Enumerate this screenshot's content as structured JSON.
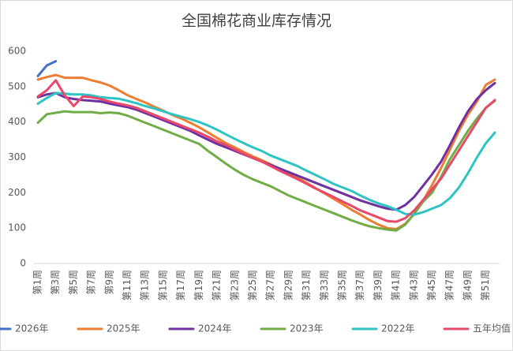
{
  "chart_data": {
    "type": "line",
    "title": "全国棉花商业库存情况",
    "categories": [
      "第1周",
      null,
      "第3周",
      null,
      "第5周",
      null,
      "第7周",
      null,
      "第9周",
      null,
      "第11周",
      null,
      "第13周",
      null,
      "第15周",
      null,
      "第17周",
      null,
      "第19周",
      null,
      "第21周",
      null,
      "第23周",
      null,
      "第25周",
      null,
      "第27周",
      null,
      "第29周",
      null,
      "第31周",
      null,
      "第33周",
      null,
      "第35周",
      null,
      "第37周",
      null,
      "第39周",
      null,
      "第41周",
      null,
      "第43周",
      null,
      "第45周",
      null,
      "第47周",
      null,
      "第49周",
      null,
      "第51周",
      null
    ],
    "ylim": [
      0,
      600
    ],
    "yticks": [
      0,
      100,
      200,
      300,
      400,
      500,
      600
    ],
    "grid": false,
    "legend": "bottom",
    "series": [
      {
        "name": "2026年",
        "color": "#4472c4",
        "values": [
          530,
          560,
          572,
          null,
          null,
          null,
          null,
          null,
          null,
          null,
          null,
          null,
          null,
          null,
          null,
          null,
          null,
          null,
          null,
          null,
          null,
          null,
          null,
          null,
          null,
          null,
          null,
          null,
          null,
          null,
          null,
          null,
          null,
          null,
          null,
          null,
          null,
          null,
          null,
          null,
          null,
          null,
          null,
          null,
          null,
          null,
          null,
          null,
          null,
          null,
          null,
          null
        ]
      },
      {
        "name": "2025年",
        "color": "#ed7d31",
        "values": [
          520,
          527,
          533,
          525,
          525,
          525,
          518,
          512,
          503,
          490,
          476,
          465,
          455,
          443,
          432,
          420,
          410,
          398,
          385,
          370,
          355,
          340,
          328,
          315,
          303,
          292,
          280,
          268,
          255,
          242,
          228,
          213,
          198,
          183,
          168,
          152,
          138,
          123,
          110,
          100,
          97,
          112,
          140,
          178,
          222,
          270,
          322,
          375,
          420,
          458,
          505,
          520
        ]
      },
      {
        "name": "2024年",
        "color": "#7030a0",
        "values": [
          470,
          478,
          482,
          470,
          465,
          462,
          460,
          458,
          452,
          447,
          442,
          435,
          425,
          415,
          405,
          395,
          385,
          375,
          362,
          350,
          338,
          328,
          318,
          308,
          298,
          288,
          278,
          268,
          258,
          248,
          238,
          228,
          218,
          208,
          198,
          188,
          178,
          170,
          162,
          155,
          152,
          165,
          188,
          220,
          252,
          288,
          335,
          385,
          430,
          465,
          490,
          510
        ]
      },
      {
        "name": "2023年",
        "color": "#70ad47",
        "values": [
          398,
          422,
          426,
          430,
          428,
          428,
          428,
          425,
          427,
          425,
          418,
          408,
          398,
          388,
          378,
          368,
          358,
          348,
          338,
          318,
          300,
          282,
          265,
          250,
          238,
          228,
          218,
          205,
          192,
          182,
          172,
          162,
          152,
          142,
          132,
          122,
          113,
          105,
          100,
          96,
          93,
          110,
          140,
          175,
          200,
          245,
          295,
          335,
          375,
          410,
          440,
          460
        ]
      },
      {
        "name": "2022年",
        "color": "#2ec4c4",
        "values": [
          452,
          468,
          482,
          480,
          478,
          478,
          475,
          470,
          468,
          466,
          460,
          453,
          445,
          438,
          430,
          422,
          415,
          408,
          400,
          390,
          378,
          365,
          352,
          340,
          328,
          318,
          305,
          295,
          285,
          275,
          262,
          250,
          238,
          225,
          215,
          205,
          192,
          180,
          170,
          162,
          152,
          140,
          138,
          145,
          155,
          165,
          185,
          215,
          255,
          300,
          340,
          370
        ]
      },
      {
        "name": "五年均值",
        "color": "#e8496a",
        "values": [
          472,
          490,
          518,
          475,
          445,
          472,
          470,
          465,
          458,
          452,
          447,
          440,
          430,
          420,
          410,
          400,
          390,
          380,
          370,
          358,
          345,
          335,
          322,
          310,
          298,
          288,
          275,
          262,
          250,
          238,
          225,
          212,
          200,
          188,
          175,
          163,
          150,
          140,
          130,
          120,
          118,
          128,
          150,
          180,
          210,
          240,
          280,
          320,
          360,
          400,
          440,
          462
        ]
      }
    ]
  }
}
